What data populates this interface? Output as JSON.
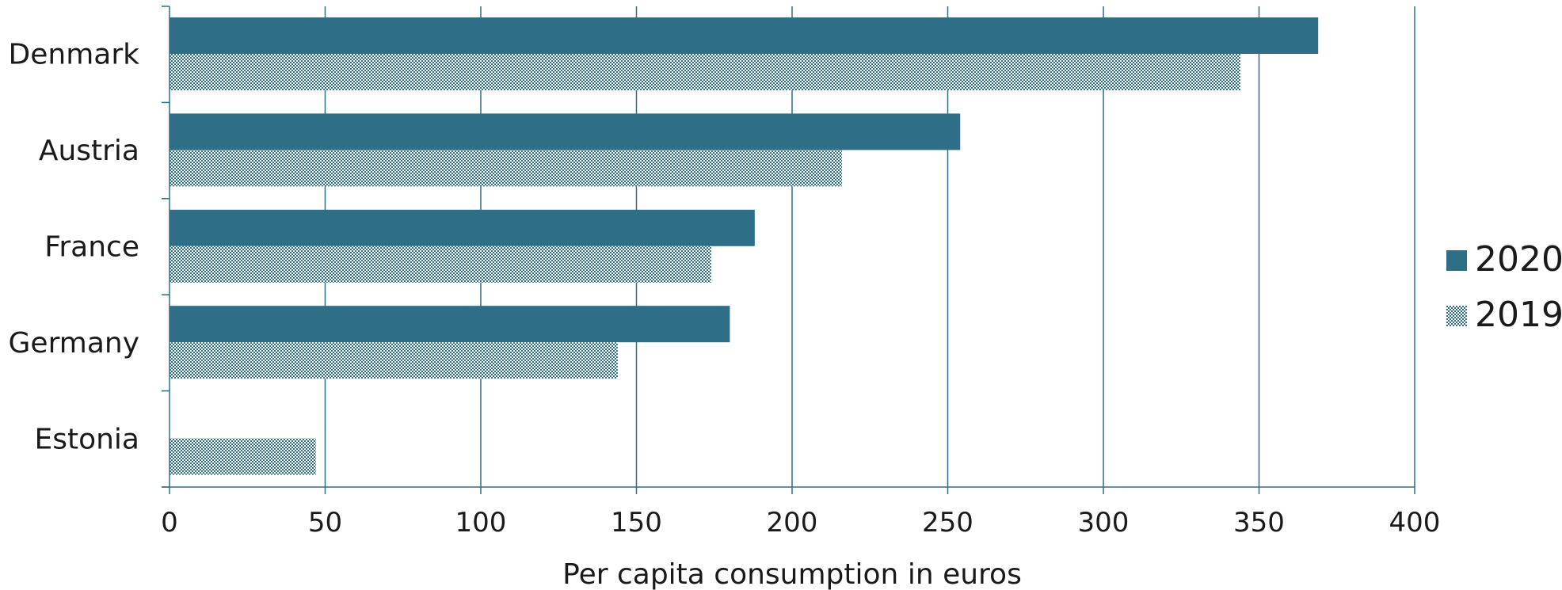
{
  "chart_data": {
    "type": "bar",
    "orientation": "horizontal",
    "categories": [
      "Denmark",
      "Austria",
      "France",
      "Germany",
      "Estonia"
    ],
    "series": [
      {
        "name": "2020",
        "values": [
          369,
          254,
          188,
          180,
          null
        ],
        "color": "#2e6e86",
        "fill": "solid"
      },
      {
        "name": "2019",
        "values": [
          344,
          216,
          174,
          144,
          47
        ],
        "color": "#2e6e86",
        "fill": "dotted"
      }
    ],
    "xlabel": "Per capita consumption in euros",
    "ylabel": "",
    "xlim": [
      0,
      400
    ],
    "xticks": [
      0,
      50,
      100,
      150,
      200,
      250,
      300,
      350,
      400
    ],
    "grid": true,
    "legend": "right",
    "axis_color": "#2e6e86"
  }
}
